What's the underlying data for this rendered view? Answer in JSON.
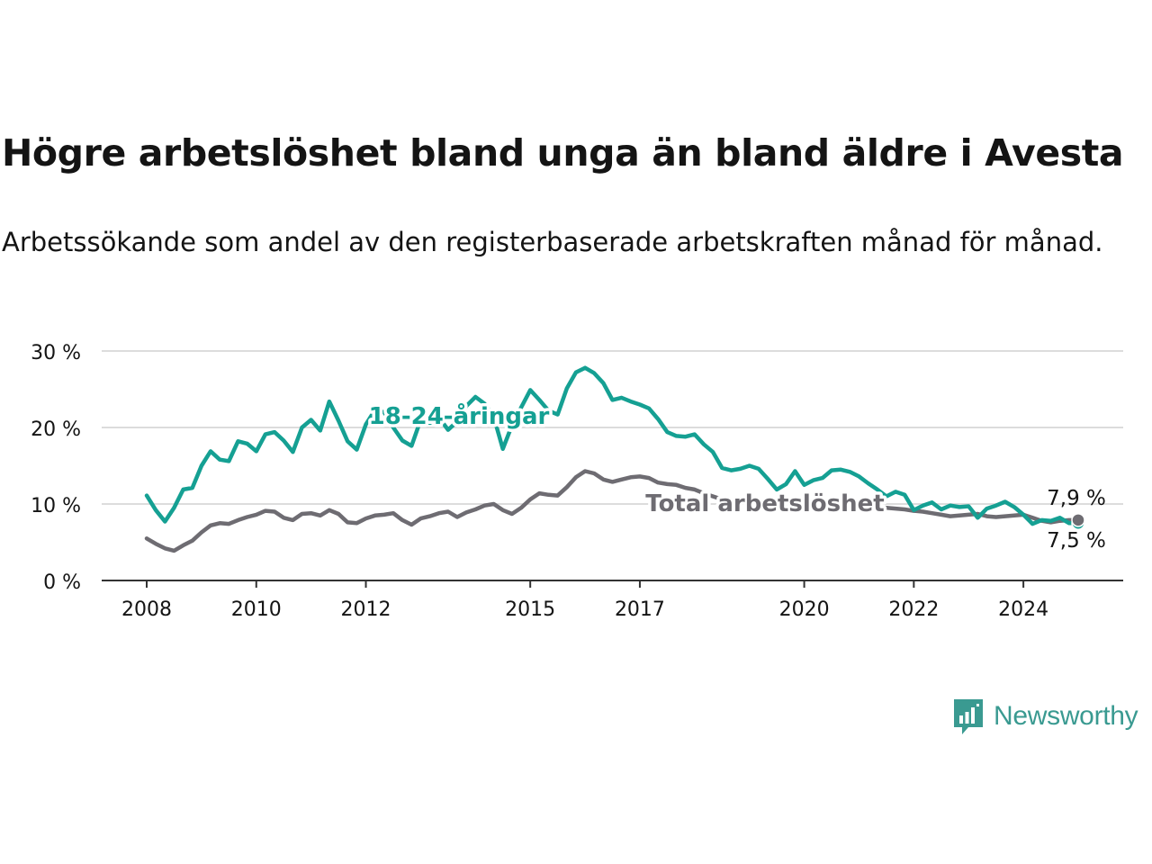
{
  "title": "Högre arbetslöshet bland unga än bland äldre i Avesta",
  "subtitle": "Arbetssökande som andel av den registerbaserade arbetskraften månad för månad.",
  "brand": {
    "name": "Newsworthy",
    "icon": "newsworthy-logo-icon",
    "color": "#3a9a91"
  },
  "colors": {
    "young": "#15a093",
    "total": "#6e6c72",
    "grid": "#dcdcdc",
    "axis": "#333333",
    "text": "#141414"
  },
  "chart_data": {
    "type": "line",
    "title": "Högre arbetslöshet bland unga än bland äldre i Avesta",
    "subtitle": "Arbetssökande som andel av den registerbaserade arbetskraften månad för månad.",
    "xlabel": "",
    "ylabel": "",
    "x_range": [
      "2008-01",
      "2025-01"
    ],
    "ylim": [
      0,
      30
    ],
    "y_ticks": [
      0,
      10,
      20,
      30
    ],
    "y_tick_labels": [
      "0 %",
      "10 %",
      "20 %",
      "30 %"
    ],
    "x_ticks": [
      2008,
      2010,
      2012,
      2015,
      2017,
      2020,
      2022,
      2024
    ],
    "x_tick_labels": [
      "2008",
      "2010",
      "2012",
      "2015",
      "2017",
      "2020",
      "2022",
      "2024"
    ],
    "grid": true,
    "series": [
      {
        "name": "18-24-åringar",
        "color": "#15a093",
        "last_label": "7,5 %",
        "points": [
          [
            "2008-01",
            11.1
          ],
          [
            "2008-03",
            9.2
          ],
          [
            "2008-05",
            7.7
          ],
          [
            "2008-07",
            9.5
          ],
          [
            "2008-09",
            11.9
          ],
          [
            "2008-11",
            12.1
          ],
          [
            "2009-01",
            15.0
          ],
          [
            "2009-03",
            16.9
          ],
          [
            "2009-05",
            15.8
          ],
          [
            "2009-07",
            15.6
          ],
          [
            "2009-09",
            18.2
          ],
          [
            "2009-11",
            17.9
          ],
          [
            "2010-01",
            16.9
          ],
          [
            "2010-03",
            19.1
          ],
          [
            "2010-05",
            19.4
          ],
          [
            "2010-07",
            18.3
          ],
          [
            "2010-09",
            16.8
          ],
          [
            "2010-11",
            20.0
          ],
          [
            "2011-01",
            21.0
          ],
          [
            "2011-03",
            19.6
          ],
          [
            "2011-05",
            23.4
          ],
          [
            "2011-07",
            20.9
          ],
          [
            "2011-09",
            18.2
          ],
          [
            "2011-11",
            17.1
          ],
          [
            "2012-01",
            20.4
          ],
          [
            "2012-03",
            22.3
          ],
          [
            "2012-05",
            22.0
          ],
          [
            "2012-07",
            20.0
          ],
          [
            "2012-09",
            18.3
          ],
          [
            "2012-11",
            17.6
          ],
          [
            "2013-01",
            21.0
          ],
          [
            "2013-03",
            20.6
          ],
          [
            "2013-05",
            21.3
          ],
          [
            "2013-07",
            19.7
          ],
          [
            "2013-09",
            20.8
          ],
          [
            "2013-11",
            22.8
          ],
          [
            "2014-01",
            24.0
          ],
          [
            "2014-03",
            23.1
          ],
          [
            "2014-05",
            21.4
          ],
          [
            "2014-07",
            17.2
          ],
          [
            "2014-09",
            20.3
          ],
          [
            "2014-11",
            22.6
          ],
          [
            "2015-01",
            24.9
          ],
          [
            "2015-03",
            23.6
          ],
          [
            "2015-05",
            22.2
          ],
          [
            "2015-07",
            21.7
          ],
          [
            "2015-09",
            25.1
          ],
          [
            "2015-11",
            27.2
          ],
          [
            "2016-01",
            27.8
          ],
          [
            "2016-03",
            27.1
          ],
          [
            "2016-05",
            25.8
          ],
          [
            "2016-07",
            23.6
          ],
          [
            "2016-09",
            23.9
          ],
          [
            "2016-11",
            23.4
          ],
          [
            "2017-01",
            23.0
          ],
          [
            "2017-03",
            22.5
          ],
          [
            "2017-05",
            21.1
          ],
          [
            "2017-07",
            19.4
          ],
          [
            "2017-09",
            18.9
          ],
          [
            "2017-11",
            18.8
          ],
          [
            "2018-01",
            19.1
          ],
          [
            "2018-03",
            17.8
          ],
          [
            "2018-05",
            16.8
          ],
          [
            "2018-07",
            14.7
          ],
          [
            "2018-09",
            14.4
          ],
          [
            "2018-11",
            14.6
          ],
          [
            "2019-01",
            15.0
          ],
          [
            "2019-03",
            14.6
          ],
          [
            "2019-05",
            13.3
          ],
          [
            "2019-07",
            11.9
          ],
          [
            "2019-09",
            12.6
          ],
          [
            "2019-11",
            14.3
          ],
          [
            "2020-01",
            12.5
          ],
          [
            "2020-03",
            13.1
          ],
          [
            "2020-05",
            13.4
          ],
          [
            "2020-07",
            14.4
          ],
          [
            "2020-09",
            14.5
          ],
          [
            "2020-11",
            14.2
          ],
          [
            "2021-01",
            13.6
          ],
          [
            "2021-03",
            12.7
          ],
          [
            "2021-05",
            11.9
          ],
          [
            "2021-07",
            11.0
          ],
          [
            "2021-09",
            11.6
          ],
          [
            "2021-11",
            11.2
          ],
          [
            "2022-01",
            9.2
          ],
          [
            "2022-03",
            9.8
          ],
          [
            "2022-05",
            10.2
          ],
          [
            "2022-07",
            9.3
          ],
          [
            "2022-09",
            9.8
          ],
          [
            "2022-11",
            9.6
          ],
          [
            "2023-01",
            9.7
          ],
          [
            "2023-03",
            8.2
          ],
          [
            "2023-05",
            9.4
          ],
          [
            "2023-07",
            9.8
          ],
          [
            "2023-09",
            10.3
          ],
          [
            "2023-11",
            9.6
          ],
          [
            "2024-01",
            8.6
          ],
          [
            "2024-03",
            7.4
          ],
          [
            "2024-05",
            7.9
          ],
          [
            "2024-07",
            7.8
          ],
          [
            "2024-09",
            8.2
          ],
          [
            "2024-11",
            7.5
          ],
          [
            "2025-01",
            7.5
          ]
        ]
      },
      {
        "name": "Total arbetslöshet",
        "color": "#6e6c72",
        "last_label": "7,9 %",
        "points": [
          [
            "2008-01",
            5.5
          ],
          [
            "2008-03",
            4.8
          ],
          [
            "2008-05",
            4.2
          ],
          [
            "2008-07",
            3.9
          ],
          [
            "2008-09",
            4.6
          ],
          [
            "2008-11",
            5.2
          ],
          [
            "2009-01",
            6.3
          ],
          [
            "2009-03",
            7.2
          ],
          [
            "2009-05",
            7.5
          ],
          [
            "2009-07",
            7.4
          ],
          [
            "2009-09",
            7.9
          ],
          [
            "2009-11",
            8.3
          ],
          [
            "2010-01",
            8.6
          ],
          [
            "2010-03",
            9.1
          ],
          [
            "2010-05",
            9.0
          ],
          [
            "2010-07",
            8.2
          ],
          [
            "2010-09",
            7.9
          ],
          [
            "2010-11",
            8.7
          ],
          [
            "2011-01",
            8.8
          ],
          [
            "2011-03",
            8.5
          ],
          [
            "2011-05",
            9.2
          ],
          [
            "2011-07",
            8.7
          ],
          [
            "2011-09",
            7.6
          ],
          [
            "2011-11",
            7.5
          ],
          [
            "2012-01",
            8.1
          ],
          [
            "2012-03",
            8.5
          ],
          [
            "2012-05",
            8.6
          ],
          [
            "2012-07",
            8.8
          ],
          [
            "2012-09",
            7.9
          ],
          [
            "2012-11",
            7.3
          ],
          [
            "2013-01",
            8.1
          ],
          [
            "2013-03",
            8.4
          ],
          [
            "2013-05",
            8.8
          ],
          [
            "2013-07",
            9.0
          ],
          [
            "2013-09",
            8.3
          ],
          [
            "2013-11",
            8.9
          ],
          [
            "2014-01",
            9.3
          ],
          [
            "2014-03",
            9.8
          ],
          [
            "2014-05",
            10.0
          ],
          [
            "2014-07",
            9.2
          ],
          [
            "2014-09",
            8.7
          ],
          [
            "2014-11",
            9.5
          ],
          [
            "2015-01",
            10.6
          ],
          [
            "2015-03",
            11.4
          ],
          [
            "2015-05",
            11.2
          ],
          [
            "2015-07",
            11.1
          ],
          [
            "2015-09",
            12.2
          ],
          [
            "2015-11",
            13.5
          ],
          [
            "2016-01",
            14.3
          ],
          [
            "2016-03",
            14.0
          ],
          [
            "2016-05",
            13.2
          ],
          [
            "2016-07",
            12.9
          ],
          [
            "2016-09",
            13.2
          ],
          [
            "2016-11",
            13.5
          ],
          [
            "2017-01",
            13.6
          ],
          [
            "2017-03",
            13.4
          ],
          [
            "2017-05",
            12.8
          ],
          [
            "2017-07",
            12.6
          ],
          [
            "2017-09",
            12.5
          ],
          [
            "2017-11",
            12.1
          ],
          [
            "2018-01",
            11.9
          ],
          [
            "2018-03",
            11.4
          ],
          [
            "2018-05",
            11.0
          ],
          [
            "2018-07",
            10.6
          ],
          [
            "2018-09",
            10.3
          ],
          [
            "2018-11",
            10.2
          ],
          [
            "2019-01",
            10.1
          ],
          [
            "2019-03",
            10.0
          ],
          [
            "2019-05",
            9.9
          ],
          [
            "2019-07",
            9.8
          ],
          [
            "2019-09",
            9.9
          ],
          [
            "2019-11",
            10.0
          ],
          [
            "2020-01",
            10.1
          ],
          [
            "2020-03",
            10.3
          ],
          [
            "2020-05",
            10.4
          ],
          [
            "2020-07",
            10.3
          ],
          [
            "2020-09",
            10.2
          ],
          [
            "2020-11",
            10.0
          ],
          [
            "2021-01",
            9.9
          ],
          [
            "2021-03",
            9.7
          ],
          [
            "2021-05",
            9.6
          ],
          [
            "2021-07",
            9.5
          ],
          [
            "2021-09",
            9.4
          ],
          [
            "2021-11",
            9.3
          ],
          [
            "2022-01",
            9.1
          ],
          [
            "2022-03",
            9.0
          ],
          [
            "2022-05",
            8.8
          ],
          [
            "2022-07",
            8.6
          ],
          [
            "2022-09",
            8.4
          ],
          [
            "2022-11",
            8.5
          ],
          [
            "2023-01",
            8.6
          ],
          [
            "2023-03",
            8.7
          ],
          [
            "2023-05",
            8.4
          ],
          [
            "2023-07",
            8.3
          ],
          [
            "2023-09",
            8.4
          ],
          [
            "2023-11",
            8.5
          ],
          [
            "2024-01",
            8.6
          ],
          [
            "2024-03",
            8.2
          ],
          [
            "2024-05",
            7.8
          ],
          [
            "2024-07",
            7.6
          ],
          [
            "2024-09",
            7.8
          ],
          [
            "2024-11",
            7.9
          ],
          [
            "2025-01",
            7.9
          ]
        ]
      }
    ]
  }
}
